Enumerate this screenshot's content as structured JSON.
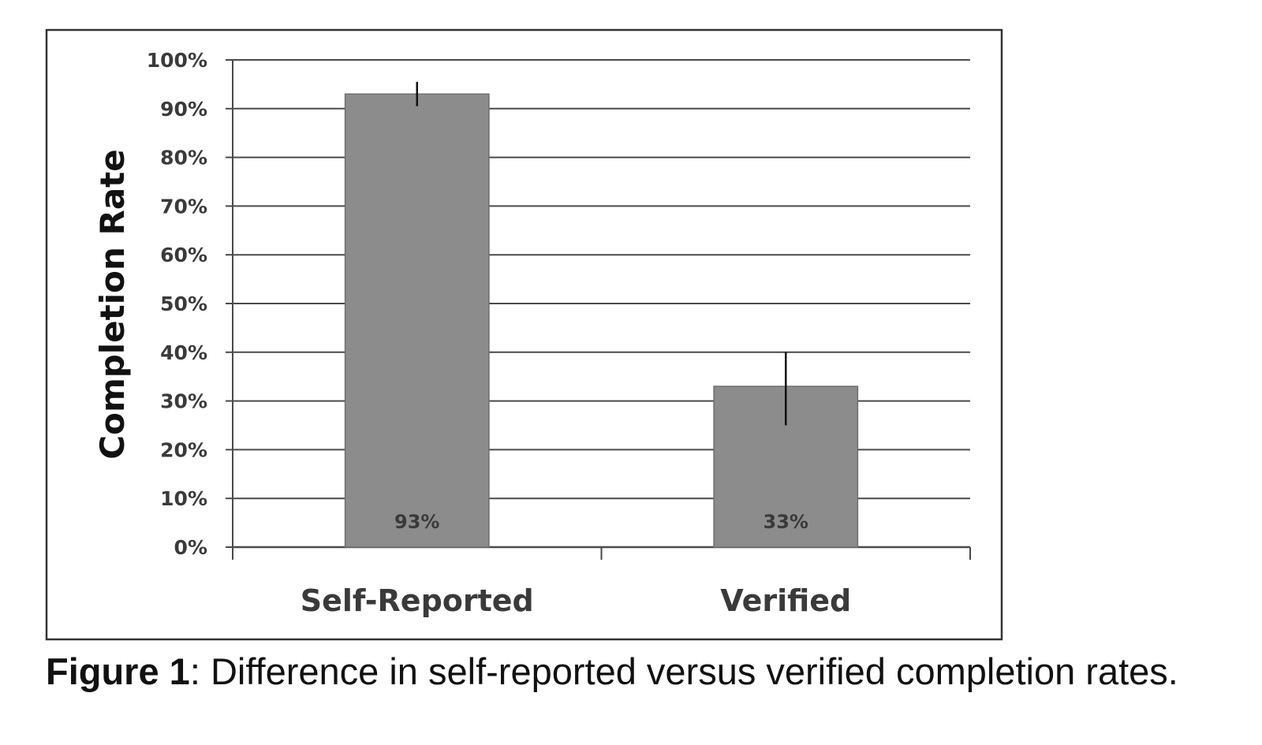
{
  "chart_data": {
    "type": "bar",
    "categories": [
      "Self-Reported",
      "Verified"
    ],
    "values": [
      0.93,
      0.33
    ],
    "data_labels": [
      "93%",
      "33%"
    ],
    "error_bars": [
      {
        "low": 0.905,
        "high": 0.955
      },
      {
        "low": 0.25,
        "high": 0.4
      }
    ],
    "ylabel": "Completion Rate",
    "xlabel": "",
    "ylim": [
      0,
      1
    ],
    "yticks": [
      0,
      0.1,
      0.2,
      0.3,
      0.4,
      0.5,
      0.6,
      0.7,
      0.8,
      0.9,
      1.0
    ],
    "ytick_labels": [
      "0%",
      "10%",
      "20%",
      "30%",
      "40%",
      "50%",
      "60%",
      "70%",
      "80%",
      "90%",
      "100%"
    ],
    "grid": true,
    "legend": "none",
    "colors": {
      "bar": "#8c8c8c",
      "bar_edge": "#6e6e6e",
      "grid": "#4a4a4a",
      "frame": "#333333",
      "error_bar": "#111111"
    }
  },
  "caption": {
    "label": "Figure 1",
    "text": ": Difference in self-reported versus verified completion rates."
  }
}
